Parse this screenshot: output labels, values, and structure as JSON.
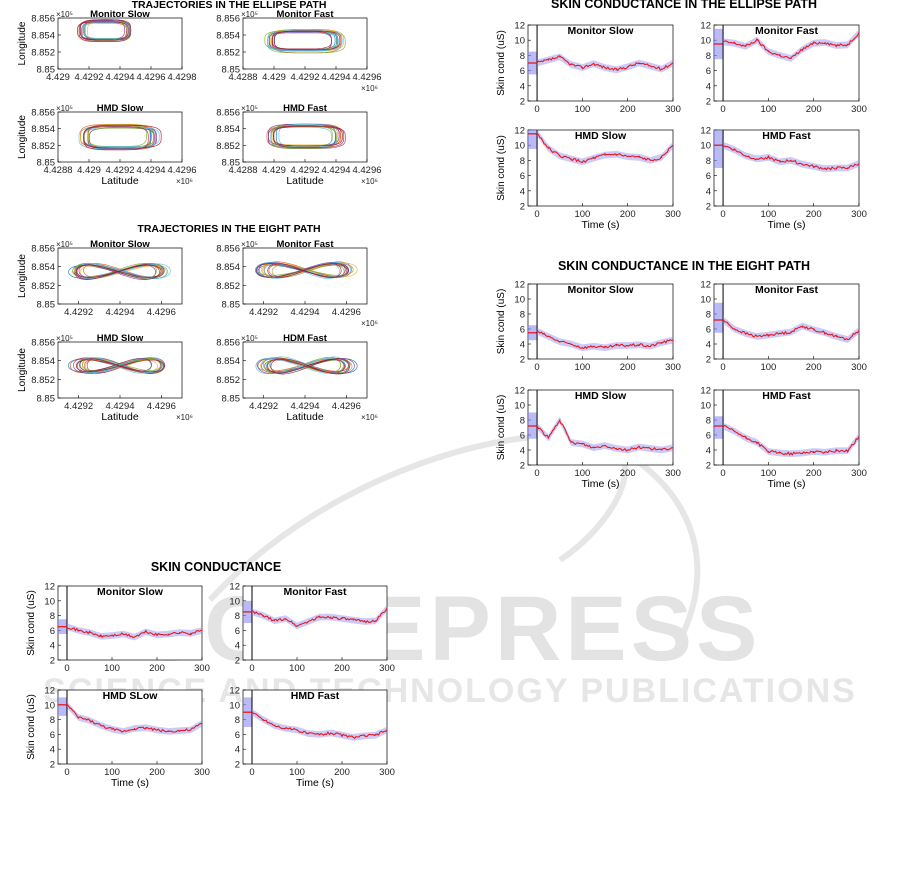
{
  "watermark": {
    "word": "SCITEPRESS",
    "tagline": "SCIENCE AND TECHNOLOGY PUBLICATIONS",
    "color": "#c8c8c8"
  },
  "colors": {
    "line": "#e8191f",
    "band": "#8a8cf0",
    "axis": "#000000",
    "traj": [
      "#0072BD",
      "#D95319",
      "#EDB120",
      "#7E2F8E",
      "#77AC30",
      "#4DBEEE",
      "#A2142F"
    ]
  },
  "chart_data": [
    {
      "group": "ellipse_traj",
      "title": "TRAJECTORIES IN THE ELLIPSE PATH",
      "type": "line",
      "panels": [
        {
          "subtitle": "Monitor Slow",
          "shape": "ellipse",
          "ylabel": "Longitude",
          "xlabel": "",
          "xlim": [
            4.429,
            4.4298
          ],
          "ylim": [
            8.85,
            8.856
          ],
          "xticks": [
            "4.429",
            "4.4292",
            "4.4294",
            "4.4296",
            "4.4298"
          ],
          "yticks": [
            "8.85",
            "8.852",
            "8.854",
            "8.856"
          ],
          "xexp": "",
          "yexp": "10^5",
          "traj_center": [
            4.4293,
            8.8545
          ],
          "traj_radius": [
            0.00015,
            0.0011
          ]
        },
        {
          "subtitle": "Monitor Fast",
          "shape": "ellipse",
          "ylabel": "",
          "xlabel": "",
          "xlim": [
            4.4288,
            4.4296
          ],
          "ylim": [
            8.85,
            8.856
          ],
          "xticks": [
            "4.4288",
            "4.429",
            "4.4292",
            "4.4294",
            "4.4296"
          ],
          "yticks": [
            "8.85",
            "8.852",
            "8.854",
            "8.856"
          ],
          "xexp": "10^6",
          "yexp": "10^5",
          "traj_center": [
            4.4292,
            8.8533
          ],
          "traj_radius": [
            0.00022,
            0.0012
          ]
        },
        {
          "subtitle": "HMD Slow",
          "shape": "ellipse",
          "ylabel": "Longitude",
          "xlabel": "Latitude",
          "xlim": [
            4.4288,
            4.4296
          ],
          "ylim": [
            8.85,
            8.856
          ],
          "xticks": [
            "4.4288",
            "4.429",
            "4.4292",
            "4.4294",
            "4.4296"
          ],
          "yticks": [
            "8.85",
            "8.852",
            "8.854",
            "8.856"
          ],
          "xexp": "10^6",
          "yexp": "10^5",
          "traj_center": [
            4.4292,
            8.853
          ],
          "traj_radius": [
            0.00022,
            0.0013
          ]
        },
        {
          "subtitle": "HMD Fast",
          "shape": "ellipse",
          "ylabel": "",
          "xlabel": "Latitude",
          "xlim": [
            4.4288,
            4.4296
          ],
          "ylim": [
            8.85,
            8.856
          ],
          "xticks": [
            "4.4288",
            "4.429",
            "4.4292",
            "4.4294",
            "4.4296"
          ],
          "yticks": [
            "8.85",
            "8.852",
            "8.854",
            "8.856"
          ],
          "xexp": "10^6",
          "yexp": "10^5",
          "traj_center": [
            4.4292,
            8.8531
          ],
          "traj_radius": [
            0.00022,
            0.0013
          ]
        }
      ]
    },
    {
      "group": "eight_traj",
      "title": "TRAJECTORIES IN THE EIGHT PATH",
      "type": "line",
      "panels": [
        {
          "subtitle": "Monitor Slow",
          "shape": "eight",
          "ylabel": "Longitude",
          "xlabel": "",
          "xlim": [
            4.4291,
            4.4296
          ],
          "ylim": [
            8.85,
            8.856
          ],
          "xticks": [
            "4.4292",
            "4.4294",
            "4.4296"
          ],
          "yticks": [
            "8.85",
            "8.852",
            "8.854",
            "8.856"
          ],
          "xexp": "",
          "yexp": "10^5",
          "traj_center": [
            4.42935,
            8.8535
          ],
          "traj_radius": [
            0.00017,
            0.0009
          ]
        },
        {
          "subtitle": "Monitor Fast",
          "shape": "eight",
          "ylabel": "",
          "xlabel": "",
          "xlim": [
            4.4291,
            4.4296
          ],
          "ylim": [
            8.85,
            8.856
          ],
          "xticks": [
            "4.4292",
            "4.4294",
            "4.4296"
          ],
          "yticks": [
            "8.85",
            "8.852",
            "8.854",
            "8.856"
          ],
          "xexp": "10^6",
          "yexp": "10^5",
          "traj_center": [
            4.42935,
            8.8536
          ],
          "traj_radius": [
            0.00017,
            0.0009
          ]
        },
        {
          "subtitle": "HMD Slow",
          "shape": "eight",
          "ylabel": "Longitude",
          "xlabel": "Latitude",
          "xlim": [
            4.4291,
            4.4296
          ],
          "ylim": [
            8.85,
            8.856
          ],
          "xticks": [
            "4.4292",
            "4.4294",
            "4.4296"
          ],
          "yticks": [
            "8.85",
            "8.852",
            "8.854",
            "8.856"
          ],
          "xexp": "10^6",
          "yexp": "10^5",
          "traj_center": [
            4.42935,
            8.8535
          ],
          "traj_radius": [
            0.00017,
            0.0009
          ]
        },
        {
          "subtitle": "HDM Fast",
          "shape": "eight",
          "ylabel": "",
          "xlabel": "Latitude",
          "xlim": [
            4.4291,
            4.4296
          ],
          "ylim": [
            8.85,
            8.856
          ],
          "xticks": [
            "4.4292",
            "4.4294",
            "4.4296"
          ],
          "yticks": [
            "8.85",
            "8.852",
            "8.854",
            "8.856"
          ],
          "xexp": "10^6",
          "yexp": "10^5",
          "traj_center": [
            4.42935,
            8.8535
          ],
          "traj_radius": [
            0.00017,
            0.0009
          ]
        }
      ]
    },
    {
      "group": "sc_ellipse",
      "title": "SKIN CONDUCTANCE IN THE ELLIPSE PATH",
      "type": "line",
      "panels": [
        {
          "subtitle": "Monitor Slow",
          "ylabel": "Skin cond (uS)",
          "xlabel": "",
          "xlim": [
            -20,
            300
          ],
          "ylim": [
            2,
            12
          ],
          "xticks": [
            0,
            100,
            200,
            300
          ],
          "yticks": [
            2,
            4,
            6,
            8,
            10,
            12
          ],
          "baseline": 7,
          "baseline_band": [
            5.5,
            8.5
          ],
          "x": [
            0,
            25,
            50,
            75,
            100,
            125,
            150,
            175,
            200,
            225,
            250,
            275,
            300
          ],
          "y": [
            7.0,
            7.4,
            7.8,
            6.8,
            6.4,
            6.9,
            6.4,
            6.1,
            6.5,
            7.0,
            6.6,
            6.2,
            7.0
          ]
        },
        {
          "subtitle": "Monitor Fast",
          "ylabel": "",
          "xlabel": "",
          "xlim": [
            -20,
            300
          ],
          "ylim": [
            2,
            12
          ],
          "xticks": [
            0,
            100,
            200,
            300
          ],
          "yticks": [
            2,
            4,
            6,
            8,
            10,
            12
          ],
          "baseline": 9.5,
          "baseline_band": [
            7.5,
            11.5
          ],
          "x": [
            0,
            25,
            50,
            75,
            100,
            125,
            150,
            175,
            200,
            225,
            250,
            275,
            300
          ],
          "y": [
            9.8,
            9.6,
            9.2,
            10.0,
            8.5,
            8.0,
            7.6,
            8.8,
            9.6,
            9.7,
            9.3,
            9.4,
            11.0
          ]
        },
        {
          "subtitle": "HMD Slow",
          "ylabel": "Skin cond (uS)",
          "xlabel": "Time (s)",
          "xlim": [
            -20,
            300
          ],
          "ylim": [
            2,
            12
          ],
          "xticks": [
            0,
            100,
            200,
            300
          ],
          "yticks": [
            2,
            4,
            6,
            8,
            10,
            12
          ],
          "baseline": 11.5,
          "baseline_band": [
            9.5,
            12
          ],
          "x": [
            0,
            25,
            50,
            75,
            100,
            125,
            150,
            175,
            200,
            225,
            250,
            275,
            300
          ],
          "y": [
            11.6,
            9.6,
            8.6,
            8.2,
            7.8,
            8.3,
            8.7,
            8.8,
            8.5,
            8.4,
            8.0,
            8.4,
            10.0
          ]
        },
        {
          "subtitle": "HMD Fast",
          "ylabel": "",
          "xlabel": "Time (s)",
          "xlim": [
            -20,
            300
          ],
          "ylim": [
            2,
            12
          ],
          "xticks": [
            0,
            100,
            200,
            300
          ],
          "yticks": [
            2,
            4,
            6,
            8,
            10,
            12
          ],
          "baseline": 10,
          "baseline_band": [
            7,
            12
          ],
          "x": [
            0,
            25,
            50,
            75,
            100,
            125,
            150,
            175,
            200,
            225,
            250,
            275,
            300
          ],
          "y": [
            10.0,
            9.4,
            8.6,
            8.2,
            8.4,
            7.8,
            8.0,
            7.5,
            7.2,
            6.9,
            7.0,
            7.0,
            7.6
          ]
        }
      ]
    },
    {
      "group": "sc_eight",
      "title": "SKIN CONDUCTANCE IN THE EIGHT PATH",
      "type": "line",
      "panels": [
        {
          "subtitle": "Monitor Slow",
          "ylabel": "Skin cond (uS)",
          "xlabel": "",
          "xlim": [
            -20,
            300
          ],
          "ylim": [
            2,
            12
          ],
          "xticks": [
            0,
            100,
            200,
            300
          ],
          "yticks": [
            2,
            4,
            6,
            8,
            10,
            12
          ],
          "baseline": 5.5,
          "baseline_band": [
            4.5,
            6.5
          ],
          "x": [
            0,
            25,
            50,
            75,
            100,
            125,
            150,
            175,
            200,
            225,
            250,
            275,
            300
          ],
          "y": [
            5.7,
            5.0,
            4.3,
            4.0,
            3.5,
            3.7,
            3.5,
            3.8,
            3.8,
            3.9,
            3.7,
            4.2,
            4.5
          ]
        },
        {
          "subtitle": "Monitor Fast",
          "ylabel": "",
          "xlabel": "",
          "xlim": [
            -20,
            300
          ],
          "ylim": [
            2,
            12
          ],
          "xticks": [
            0,
            100,
            200,
            300
          ],
          "yticks": [
            2,
            4,
            6,
            8,
            10,
            12
          ],
          "baseline": 7.2,
          "baseline_band": [
            5.5,
            9.5
          ],
          "x": [
            0,
            25,
            50,
            75,
            100,
            125,
            150,
            175,
            200,
            225,
            250,
            275,
            300
          ],
          "y": [
            7.2,
            6.0,
            5.4,
            5.0,
            5.2,
            5.4,
            5.6,
            6.4,
            5.9,
            5.5,
            5.0,
            4.6,
            5.8
          ]
        },
        {
          "subtitle": "HMD Slow",
          "ylabel": "Skin cond (uS)",
          "xlabel": "Time (s)",
          "xlim": [
            -20,
            300
          ],
          "ylim": [
            2,
            12
          ],
          "xticks": [
            0,
            100,
            200,
            300
          ],
          "yticks": [
            2,
            4,
            6,
            8,
            10,
            12
          ],
          "baseline": 7.2,
          "baseline_band": [
            5.5,
            9.0
          ],
          "x": [
            0,
            25,
            50,
            75,
            100,
            125,
            150,
            175,
            200,
            225,
            250,
            275,
            300
          ],
          "y": [
            7.2,
            5.6,
            8.0,
            5.0,
            4.8,
            4.3,
            4.6,
            4.2,
            4.0,
            4.4,
            4.2,
            4.0,
            4.3
          ]
        },
        {
          "subtitle": "HMD Fast",
          "ylabel": "",
          "xlabel": "Time (s)",
          "xlim": [
            -20,
            300
          ],
          "ylim": [
            2,
            12
          ],
          "xticks": [
            0,
            100,
            200,
            300
          ],
          "yticks": [
            2,
            4,
            6,
            8,
            10,
            12
          ],
          "baseline": 7.2,
          "baseline_band": [
            5.5,
            8.5
          ],
          "x": [
            0,
            25,
            50,
            75,
            100,
            125,
            150,
            175,
            200,
            225,
            250,
            275,
            300
          ],
          "y": [
            7.2,
            6.5,
            5.6,
            5.0,
            3.8,
            3.6,
            3.5,
            3.6,
            3.8,
            3.7,
            3.9,
            3.9,
            5.8
          ]
        }
      ]
    },
    {
      "group": "sc_overall",
      "title": "SKIN CONDUCTANCE",
      "type": "line",
      "panels": [
        {
          "subtitle": "Monitor Slow",
          "ylabel": "Skin cond (uS)",
          "xlabel": "",
          "xlim": [
            -20,
            300
          ],
          "ylim": [
            2,
            12
          ],
          "xticks": [
            0,
            100,
            200,
            300
          ],
          "yticks": [
            2,
            4,
            6,
            8,
            10,
            12
          ],
          "baseline": 6.5,
          "baseline_band": [
            5.5,
            7.5
          ],
          "x": [
            0,
            25,
            50,
            75,
            100,
            125,
            150,
            175,
            200,
            225,
            250,
            275,
            300
          ],
          "y": [
            6.5,
            6.0,
            5.7,
            5.2,
            5.3,
            5.5,
            5.1,
            5.8,
            5.4,
            5.5,
            5.7,
            5.6,
            6.0
          ]
        },
        {
          "subtitle": "Monitor Fast",
          "ylabel": "",
          "xlabel": "",
          "xlim": [
            -20,
            300
          ],
          "ylim": [
            2,
            12
          ],
          "xticks": [
            0,
            100,
            200,
            300
          ],
          "yticks": [
            2,
            4,
            6,
            8,
            10,
            12
          ],
          "baseline": 8.5,
          "baseline_band": [
            7.0,
            10.0
          ],
          "x": [
            0,
            25,
            50,
            75,
            100,
            125,
            150,
            175,
            200,
            225,
            250,
            275,
            300
          ],
          "y": [
            8.5,
            8.0,
            7.3,
            7.6,
            6.6,
            7.2,
            7.8,
            7.8,
            7.6,
            7.4,
            7.2,
            7.3,
            9.0
          ]
        },
        {
          "subtitle": "HMD SLow",
          "ylabel": "Skin cond (uS)",
          "xlabel": "Time (s)",
          "xlim": [
            -20,
            300
          ],
          "ylim": [
            2,
            12
          ],
          "xticks": [
            0,
            100,
            200,
            300
          ],
          "yticks": [
            2,
            4,
            6,
            8,
            10,
            12
          ],
          "baseline": 10,
          "baseline_band": [
            8.5,
            11.0
          ],
          "x": [
            0,
            25,
            50,
            75,
            100,
            125,
            150,
            175,
            200,
            225,
            250,
            275,
            300
          ],
          "y": [
            10.0,
            8.3,
            7.9,
            7.2,
            6.7,
            6.4,
            6.8,
            6.9,
            6.6,
            6.4,
            6.5,
            6.6,
            7.5
          ]
        },
        {
          "subtitle": "HMD Fast",
          "ylabel": "",
          "xlabel": "Time (s)",
          "xlim": [
            -20,
            300
          ],
          "ylim": [
            2,
            12
          ],
          "xticks": [
            0,
            100,
            200,
            300
          ],
          "yticks": [
            2,
            4,
            6,
            8,
            10,
            12
          ],
          "baseline": 9.0,
          "baseline_band": [
            7.0,
            11.0
          ],
          "x": [
            0,
            25,
            50,
            75,
            100,
            125,
            150,
            175,
            200,
            225,
            250,
            275,
            300
          ],
          "y": [
            9.0,
            8.0,
            7.2,
            6.8,
            6.6,
            6.1,
            6.0,
            6.2,
            5.9,
            5.6,
            5.8,
            5.9,
            6.6
          ]
        }
      ]
    }
  ]
}
